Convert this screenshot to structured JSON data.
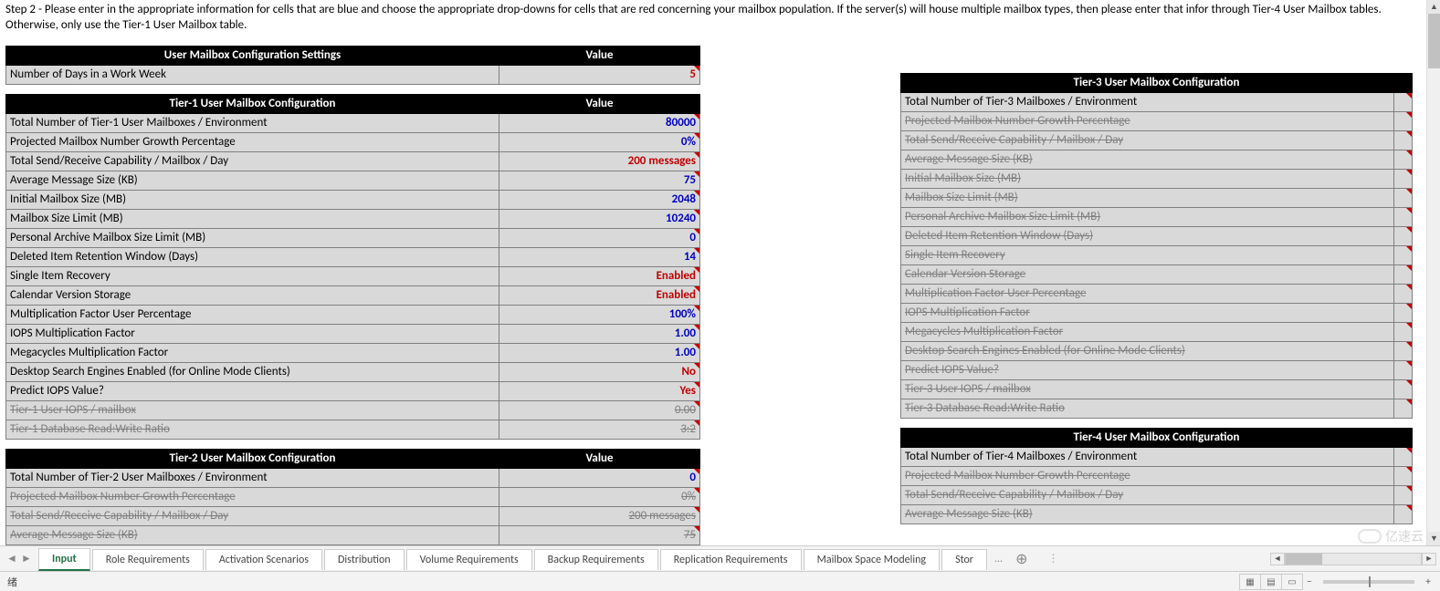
{
  "instructions": "Step 2 - Please enter in the appropriate information for cells that are blue and choose the appropriate drop-downs for cells that are red concerning your mailbox population.  If the server(s) will house multiple mailbox types, then please enter that infor through Tier-4 User Mailbox tables.  Otherwise, only use the Tier-1 User Mailbox table.",
  "colors": {
    "header_bg": "#000000",
    "header_fg": "#ffffff",
    "cell_bg": "#d9d9d9",
    "blue_value": "#0000c0",
    "red_value": "#c00000",
    "strike_fg": "#808080",
    "tab_active": "#217346"
  },
  "settings_table": {
    "header_label": "User Mailbox Configuration Settings",
    "header_value": "Value",
    "rows": [
      {
        "label": "Number of Days in a Work Week",
        "value": "5",
        "style": "red",
        "corner": true
      }
    ]
  },
  "tier1": {
    "header_label": "Tier-1 User Mailbox Configuration",
    "header_value": "Value",
    "rows": [
      {
        "label": "Total Number of Tier-1 User Mailboxes / Environment",
        "value": "80000",
        "style": "blue",
        "corner": true
      },
      {
        "label": "Projected Mailbox Number Growth Percentage",
        "value": "0%",
        "style": "blue",
        "corner": true
      },
      {
        "label": "Total Send/Receive Capability / Mailbox / Day",
        "value": "200 messages",
        "style": "red",
        "corner": true
      },
      {
        "label": "Average Message Size (KB)",
        "value": "75",
        "style": "blue",
        "corner": true
      },
      {
        "label": "Initial Mailbox Size (MB)",
        "value": "2048",
        "style": "blue",
        "corner": true
      },
      {
        "label": "Mailbox Size Limit (MB)",
        "value": "10240",
        "style": "blue",
        "corner": true
      },
      {
        "label": "Personal Archive Mailbox Size Limit (MB)",
        "value": "0",
        "style": "blue",
        "corner": true
      },
      {
        "label": "Deleted Item Retention Window (Days)",
        "value": "14",
        "style": "blue",
        "corner": true
      },
      {
        "label": "Single Item Recovery",
        "value": "Enabled",
        "style": "red",
        "corner": true
      },
      {
        "label": "Calendar Version Storage",
        "value": "Enabled",
        "style": "red",
        "corner": true
      },
      {
        "label": "Multiplication Factor User Percentage",
        "value": "100%",
        "style": "blue",
        "corner": true
      },
      {
        "label": "IOPS Multiplication Factor",
        "value": "1.00",
        "style": "blue",
        "corner": true
      },
      {
        "label": "Megacycles Multiplication Factor",
        "value": "1.00",
        "style": "blue",
        "corner": true
      },
      {
        "label": "Desktop Search Engines Enabled (for Online Mode Clients)",
        "value": "No",
        "style": "red",
        "corner": true
      },
      {
        "label": "Predict IOPS Value?",
        "value": "Yes",
        "style": "red",
        "corner": true
      },
      {
        "label": "Tier-1 User IOPS / mailbox",
        "value": "0.00",
        "style": "strike",
        "corner": true
      },
      {
        "label": "Tier-1 Database Read:Write Ratio",
        "value": "3:2",
        "style": "strike",
        "corner": true
      }
    ]
  },
  "tier2": {
    "header_label": "Tier-2 User Mailbox Configuration",
    "header_value": "Value",
    "rows": [
      {
        "label": "Total Number of Tier-2 User Mailboxes / Environment",
        "value": "0",
        "style": "blue",
        "corner": true
      },
      {
        "label": "Projected Mailbox Number Growth Percentage",
        "value": "0%",
        "style": "strike",
        "corner": true
      },
      {
        "label": "Total Send/Receive Capability / Mailbox / Day",
        "value": "200 messages",
        "style": "strike",
        "corner": true
      },
      {
        "label": "Average Message Size (KB)",
        "value": "75",
        "style": "strike",
        "corner": true
      }
    ]
  },
  "tier3": {
    "header_label": "Tier-3 User Mailbox Configuration",
    "header_value": "",
    "rows": [
      {
        "label": "Total Number of Tier-3 Mailboxes / Environment",
        "value": "",
        "style": "blue",
        "corner": true
      },
      {
        "label": "Projected Mailbox Number Growth Percentage",
        "value": "",
        "style": "strike",
        "corner": true
      },
      {
        "label": "Total Send/Receive Capability / Mailbox / Day",
        "value": "",
        "style": "strike",
        "corner": true
      },
      {
        "label": "Average Message Size (KB)",
        "value": "",
        "style": "strike",
        "corner": true
      },
      {
        "label": "Initial Mailbox Size (MB)",
        "value": "",
        "style": "strike",
        "corner": true
      },
      {
        "label": "Mailbox Size Limit (MB)",
        "value": "",
        "style": "strike",
        "corner": true
      },
      {
        "label": "Personal Archive Mailbox Size Limit (MB)",
        "value": "",
        "style": "strike",
        "corner": true
      },
      {
        "label": "Deleted Item Retention Window (Days)",
        "value": "",
        "style": "strike",
        "corner": true
      },
      {
        "label": "Single Item Recovery",
        "value": "",
        "style": "strike",
        "corner": true
      },
      {
        "label": "Calendar Version Storage",
        "value": "",
        "style": "strike",
        "corner": true
      },
      {
        "label": "Multiplication Factor User Percentage",
        "value": "",
        "style": "strike",
        "corner": true
      },
      {
        "label": "IOPS Multiplication Factor",
        "value": "",
        "style": "strike",
        "corner": true
      },
      {
        "label": "Megacycles Multiplication Factor",
        "value": "",
        "style": "strike",
        "corner": true
      },
      {
        "label": "Desktop Search Engines Enabled (for Online Mode Clients)",
        "value": "",
        "style": "strike",
        "corner": true
      },
      {
        "label": "Predict IOPS Value?",
        "value": "",
        "style": "strike",
        "corner": true
      },
      {
        "label": "Tier-3 User IOPS / mailbox",
        "value": "",
        "style": "strike",
        "corner": true
      },
      {
        "label": "Tier-3 Database Read:Write Ratio",
        "value": "",
        "style": "strike",
        "corner": true
      }
    ]
  },
  "tier4": {
    "header_label": "Tier-4 User Mailbox Configuration",
    "header_value": "",
    "rows": [
      {
        "label": "Total Number of Tier-4 Mailboxes / Environment",
        "value": "",
        "style": "blue",
        "corner": true
      },
      {
        "label": "Projected Mailbox Number Growth Percentage",
        "value": "",
        "style": "strike",
        "corner": true
      },
      {
        "label": "Total Send/Receive Capability / Mailbox / Day",
        "value": "",
        "style": "strike",
        "corner": true
      },
      {
        "label": "Average Message Size (KB)",
        "value": "",
        "style": "strike",
        "corner": true
      }
    ]
  },
  "tabs": [
    "Input",
    "Role Requirements",
    "Activation Scenarios",
    "Distribution",
    "Volume Requirements",
    "Backup Requirements",
    "Replication Requirements",
    "Mailbox Space Modeling",
    "Stor"
  ],
  "tabs_active_index": 0,
  "tabs_ellipsis": "...",
  "status": {
    "ready": "绪"
  },
  "watermark": "亿速云"
}
